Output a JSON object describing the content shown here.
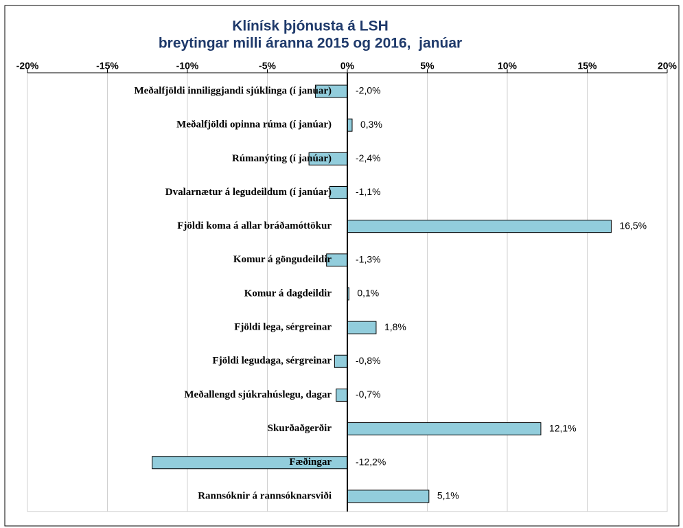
{
  "chart_data": {
    "type": "barh",
    "title": "Klínísk þjónusta á LSH",
    "subtitle": "breytingar milli áranna 2015 og 2016,  janúar",
    "categories": [
      "Meðalfjöldi inniliggjandi sjúklinga (í janúar)",
      "Meðalfjöldi opinna rúma (í janúar)",
      "Rúmanýting (í janúar)",
      "Dvalarnætur á legudeildum (í janúar)",
      "Fjöldi koma á allar bráðamóttökur",
      "Komur á göngudeildir",
      "Komur á dagdeildir",
      "Fjöldi lega, sérgreinar",
      "Fjöldi legudaga, sérgreinar",
      "Meðallengd sjúkrahúslegu, dagar",
      "Skurðaðgerðir",
      "Fæðingar",
      "Rannsóknir á rannsóknarsviði"
    ],
    "values": [
      -2.0,
      0.3,
      -2.4,
      -1.1,
      16.5,
      -1.3,
      0.1,
      1.8,
      -0.8,
      -0.7,
      12.1,
      -12.2,
      5.1
    ],
    "value_labels": [
      "-2,0%",
      "0,3%",
      "-2,4%",
      "-1,1%",
      "16,5%",
      "-1,3%",
      "0,1%",
      "1,8%",
      "-0,8%",
      "-0,7%",
      "12,1%",
      "-12,2%",
      "5,1%"
    ],
    "color": "#92cddc",
    "xlim": [
      -20,
      20
    ],
    "xticks": [
      {
        "value": -20,
        "label": "-20%"
      },
      {
        "value": -15,
        "label": "-15%"
      },
      {
        "value": -10,
        "label": "-10%"
      },
      {
        "value": -5,
        "label": "-5%"
      },
      {
        "value": 0,
        "label": "0%"
      },
      {
        "value": 5,
        "label": "5%"
      },
      {
        "value": 10,
        "label": "10%"
      },
      {
        "value": 15,
        "label": "15%"
      },
      {
        "value": 20,
        "label": "20%"
      }
    ],
    "grid": true
  }
}
